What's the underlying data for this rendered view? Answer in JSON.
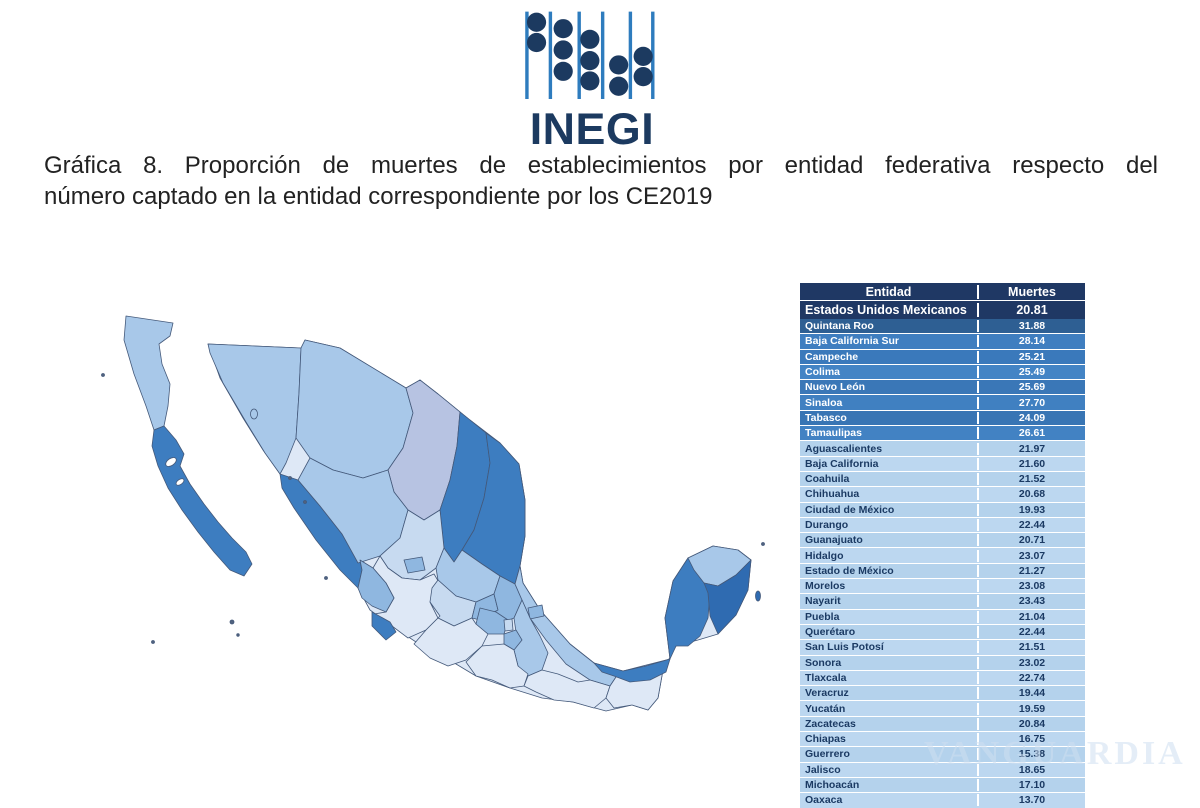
{
  "logo": {
    "text": "INEGI",
    "line_color": "#2E7CBE",
    "bead_color": "#1C3A60",
    "text_color": "#1C3A60"
  },
  "title": {
    "line1": "Gráfica 8. Proporción de muertes de establecimientos por entidad federativa respecto del",
    "line2": "número captado en la entidad correspondiente por los CE2019"
  },
  "watermark": {
    "text": "VANGUARDIA"
  },
  "table": {
    "columns": [
      "Entidad",
      "Muertes"
    ],
    "total_row": {
      "label": "Estados Unidos Mexicanos",
      "value": "20.81"
    },
    "colors": {
      "header_bg": "#1F3864",
      "total_bg": "#1F3864",
      "top_rows": [
        "#2E5F93",
        "#3F7EC0",
        "#3A79BB",
        "#4384C5",
        "#3A77B7",
        "#4080C1",
        "#3875B4",
        "#4282C3"
      ],
      "rest_a": "#B4D2EC",
      "rest_b": "#BCD7F0"
    },
    "rows": [
      {
        "label": "Quintana Roo",
        "value": "31.88"
      },
      {
        "label": "Baja California Sur",
        "value": "28.14"
      },
      {
        "label": "Campeche",
        "value": "25.21"
      },
      {
        "label": "Colima",
        "value": "25.49"
      },
      {
        "label": "Nuevo León",
        "value": "25.69"
      },
      {
        "label": "Sinaloa",
        "value": "27.70"
      },
      {
        "label": "Tabasco",
        "value": "24.09"
      },
      {
        "label": "Tamaulipas",
        "value": "26.61"
      },
      {
        "label": "Aguascalientes",
        "value": "21.97"
      },
      {
        "label": "Baja California",
        "value": "21.60"
      },
      {
        "label": "Coahuila",
        "value": "21.52"
      },
      {
        "label": "Chihuahua",
        "value": "20.68"
      },
      {
        "label": "Ciudad de México",
        "value": "19.93"
      },
      {
        "label": "Durango",
        "value": "22.44"
      },
      {
        "label": "Guanajuato",
        "value": "20.71"
      },
      {
        "label": "Hidalgo",
        "value": "23.07"
      },
      {
        "label": "Estado de México",
        "value": "21.27"
      },
      {
        "label": "Morelos",
        "value": "23.08"
      },
      {
        "label": "Nayarit",
        "value": "23.43"
      },
      {
        "label": "Puebla",
        "value": "21.04"
      },
      {
        "label": "Querétaro",
        "value": "22.44"
      },
      {
        "label": "San Luis Potosí",
        "value": "21.51"
      },
      {
        "label": "Sonora",
        "value": "23.02"
      },
      {
        "label": "Tlaxcala",
        "value": "22.74"
      },
      {
        "label": "Veracruz",
        "value": "19.44"
      },
      {
        "label": "Yucatán",
        "value": "19.59"
      },
      {
        "label": "Zacatecas",
        "value": "20.84"
      },
      {
        "label": "Chiapas",
        "value": "16.75"
      },
      {
        "label": "Guerrero",
        "value": "15.38"
      },
      {
        "label": "Jalisco",
        "value": "18.65"
      },
      {
        "label": "Michoacán",
        "value": "17.10"
      },
      {
        "label": "Oaxaca",
        "value": "13.70"
      }
    ]
  },
  "chart_data": {
    "type": "choropleth_map_with_table",
    "title": "Gráfica 8. Proporción de muertes de establecimientos por entidad federativa respecto del número captado en la entidad correspondiente por los CE2019",
    "region": "Mexico, states (entidades federativas)",
    "national_total": {
      "label": "Estados Unidos Mexicanos",
      "value": 20.81
    },
    "categories": [
      "Quintana Roo",
      "Baja California Sur",
      "Campeche",
      "Colima",
      "Nuevo León",
      "Sinaloa",
      "Tabasco",
      "Tamaulipas",
      "Aguascalientes",
      "Baja California",
      "Coahuila",
      "Chihuahua",
      "Ciudad de México",
      "Durango",
      "Guanajuato",
      "Hidalgo",
      "Estado de México",
      "Morelos",
      "Nayarit",
      "Puebla",
      "Querétaro",
      "San Luis Potosí",
      "Sonora",
      "Tlaxcala",
      "Veracruz",
      "Yucatán",
      "Zacatecas",
      "Chiapas",
      "Guerrero",
      "Jalisco",
      "Michoacán",
      "Oaxaca"
    ],
    "values": [
      31.88,
      28.14,
      25.21,
      25.49,
      25.69,
      27.7,
      24.09,
      26.61,
      21.97,
      21.6,
      21.52,
      20.68,
      19.93,
      22.44,
      20.71,
      23.07,
      21.27,
      23.08,
      23.43,
      21.04,
      22.44,
      21.51,
      23.02,
      22.74,
      19.44,
      19.59,
      20.84,
      16.75,
      15.38,
      18.65,
      17.1,
      13.7
    ],
    "palette": {
      "darkest": "#2F6BB1",
      "dark": "#3D7DC0",
      "medium": "#8FB7E0",
      "light": "#A8C8E9",
      "lighter": "#C7DAF0",
      "verylight": "#DEE8F6",
      "lavender": "#B7C3E2"
    },
    "legend_position": "none",
    "notes": "Darker blue on the map indicates a higher proportion of establishment deaths."
  }
}
